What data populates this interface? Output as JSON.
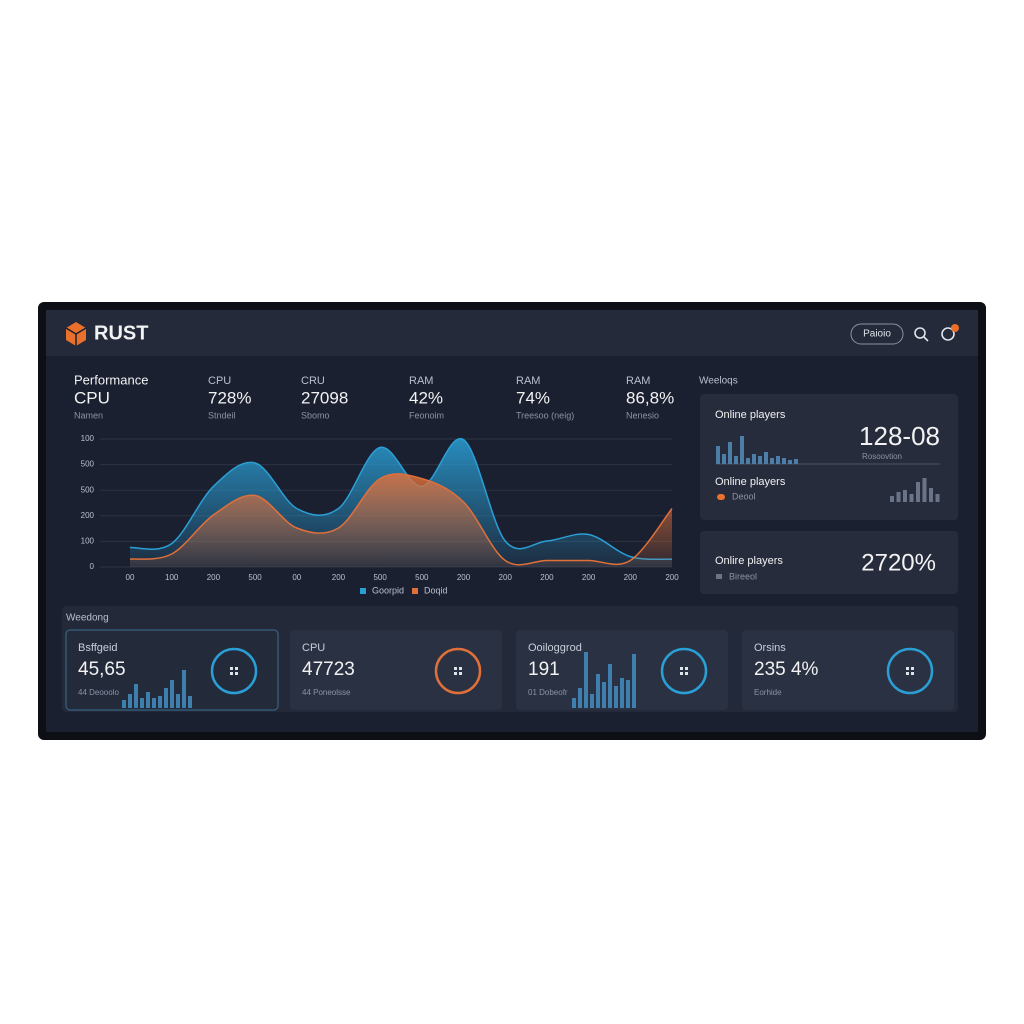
{
  "header": {
    "brand": "RUST",
    "button": "Paioio"
  },
  "stats": [
    {
      "label": "Performance",
      "value": "CPU",
      "sub": "Namen"
    },
    {
      "label": "CPU",
      "value": "728%",
      "sub": "Stndeil"
    },
    {
      "label": "CRU",
      "value": "27098",
      "sub": "Sbomo"
    },
    {
      "label": "RAM",
      "value": "42%",
      "sub": "Feonoim"
    },
    {
      "label": "RAM",
      "value": "74%",
      "sub": "Treesoo (neig)"
    },
    {
      "label": "RAM",
      "value": "86,8%",
      "sub": "Nenesio"
    }
  ],
  "chart": {
    "type": "area",
    "y_axis_labels": [
      "100",
      "500",
      "500",
      "200",
      "100",
      "0"
    ],
    "categories": [
      "00",
      "100",
      "200",
      "500",
      "00",
      "200",
      "500",
      "500",
      "200",
      "200",
      "200",
      "200",
      "200",
      "200"
    ],
    "ylim": [
      0,
      100
    ],
    "series": [
      {
        "name": "Goorpid",
        "color": "#2a9fd6",
        "values": [
          15,
          18,
          62,
          80,
          45,
          45,
          92,
          62,
          98,
          20,
          20,
          25,
          8,
          6
        ]
      },
      {
        "name": "Doqid",
        "color": "#e0703a",
        "values": [
          6,
          10,
          40,
          55,
          30,
          30,
          68,
          68,
          50,
          5,
          5,
          5,
          5,
          45
        ]
      }
    ]
  },
  "side": {
    "title": "Weeloqs",
    "panel1": {
      "label": "Online players",
      "value": "128-08",
      "sub": "Rosoovtion",
      "bars": [
        18,
        10,
        22,
        8,
        28,
        6,
        10,
        8,
        12,
        6,
        8,
        6,
        4,
        5
      ],
      "label2": "Online players",
      "sub2": "Deool",
      "bars2": [
        6,
        10,
        12,
        8,
        20,
        24,
        14,
        8
      ]
    },
    "panel2": {
      "label": "Onlire players",
      "value": "2720%",
      "sub": "Bireeol"
    }
  },
  "bottom": {
    "title": "Weedong",
    "cards": [
      {
        "label": "Bsffgeid",
        "value": "45,65",
        "sub": "44 Deooolo",
        "ring_color": "#2a9fd6",
        "bars": [
          8,
          14,
          24,
          10,
          16,
          10,
          12,
          20,
          28,
          14,
          38,
          12
        ]
      },
      {
        "label": "CPU",
        "value": "47723",
        "sub": "44 Poneolsse",
        "ring_color": "#e0703a"
      },
      {
        "label": "Ooiloggrod",
        "value": "191",
        "sub": "01 Dobeofr",
        "ring_color": "#2a9fd6",
        "bars": [
          10,
          20,
          56,
          14,
          34,
          26,
          44,
          22,
          30,
          28,
          54
        ]
      },
      {
        "label": "Orsins",
        "value": "235 4%",
        "sub": "Eorhide",
        "ring_color": "#2a9fd6"
      }
    ]
  }
}
